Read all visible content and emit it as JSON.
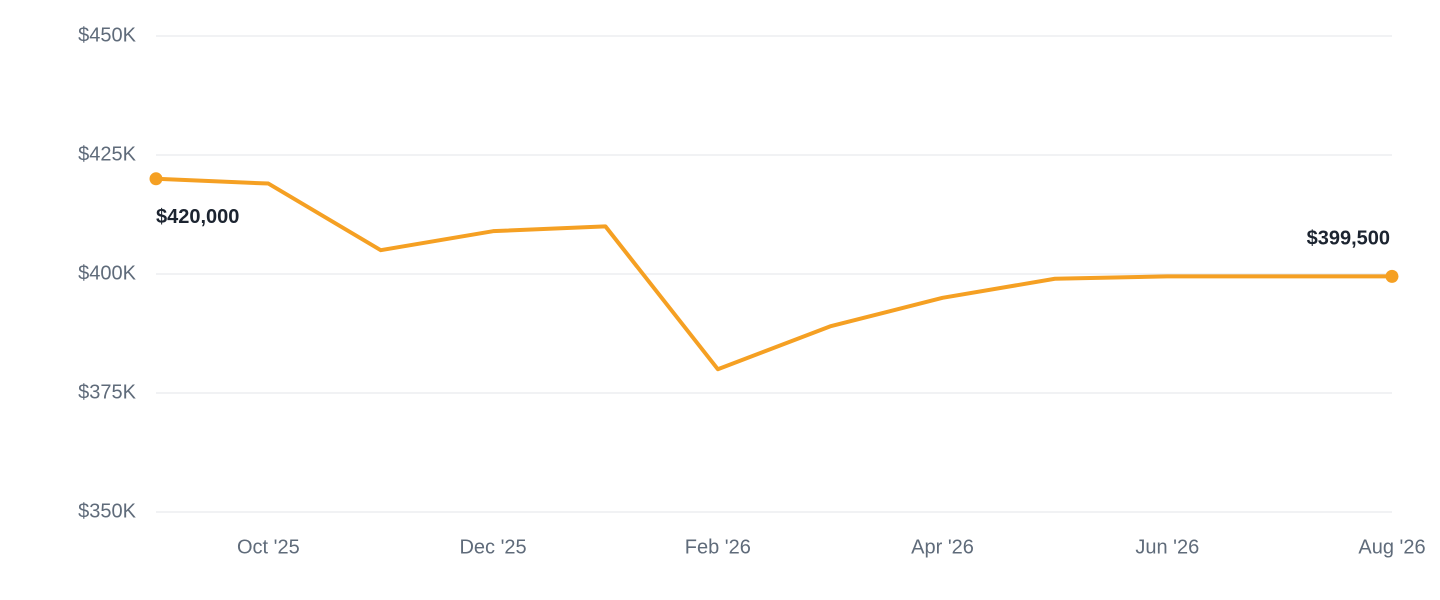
{
  "chart_data": {
    "type": "line",
    "categories": [
      null,
      "Oct '25",
      null,
      "Dec '25",
      null,
      "Feb '26",
      null,
      "Apr '26",
      null,
      "Jun '26",
      null,
      "Aug '26"
    ],
    "series": [
      {
        "color": "#f5a023",
        "values": [
          420000,
          419000,
          405000,
          409000,
          410000,
          380000,
          389000,
          395000,
          399000,
          399500,
          399500,
          399500
        ],
        "value_labels": [
          "$420,000",
          null,
          null,
          null,
          null,
          null,
          null,
          null,
          null,
          null,
          null,
          "$399,500"
        ]
      }
    ],
    "ylim": [
      350000,
      450000
    ],
    "yticks": [
      {
        "value": 350000,
        "label": "$350K"
      },
      {
        "value": 375000,
        "label": "$375K"
      },
      {
        "value": 400000,
        "label": "$400K"
      },
      {
        "value": 425000,
        "label": "$425K"
      },
      {
        "value": 450000,
        "label": "$450K"
      }
    ],
    "grid": true
  }
}
